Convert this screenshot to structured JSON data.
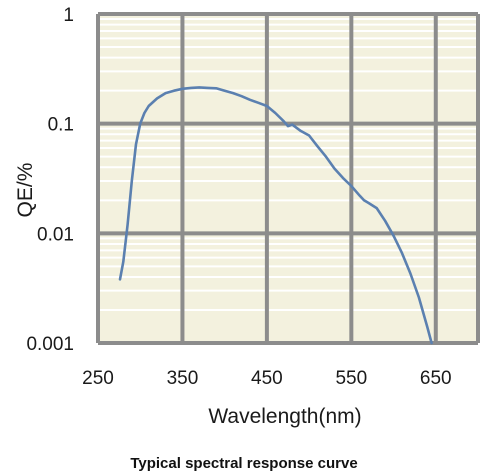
{
  "chart_data": {
    "type": "line",
    "title": "",
    "caption": "Typical spectral response curve",
    "xlabel": "Wavelength(nm)",
    "ylabel": "QE/%",
    "x_scale": "linear",
    "y_scale": "log",
    "xlim": [
      250,
      700
    ],
    "ylim": [
      0.001,
      1
    ],
    "x_ticks": [
      250,
      350,
      450,
      550,
      650
    ],
    "x_tick_labels": [
      "250",
      "350",
      "450",
      "550",
      "650"
    ],
    "y_ticks": [
      0.001,
      0.01,
      0.1,
      1
    ],
    "y_tick_labels": [
      "0.001",
      "0.01",
      "0.1",
      "1"
    ],
    "grid": true,
    "legend": "none",
    "colors": {
      "plot_background": "#f3f1de",
      "minor_grid": "#ffffff",
      "major_grid": "#8c8c8c",
      "line": "#5b80b0"
    },
    "series": [
      {
        "x": [
          276,
          280,
          285,
          290,
          295,
          300,
          305,
          310,
          320,
          330,
          340,
          350,
          360,
          370,
          380,
          390,
          400,
          410,
          420,
          430,
          440,
          450,
          460,
          470,
          475,
          480,
          490,
          500,
          510,
          520,
          530,
          540,
          550,
          560,
          565,
          570,
          580,
          590,
          600,
          610,
          620,
          630,
          640,
          645
        ],
        "y": [
          0.0038,
          0.0055,
          0.012,
          0.03,
          0.065,
          0.1,
          0.125,
          0.145,
          0.17,
          0.19,
          0.2,
          0.208,
          0.212,
          0.214,
          0.212,
          0.21,
          0.2,
          0.19,
          0.178,
          0.165,
          0.155,
          0.145,
          0.125,
          0.105,
          0.095,
          0.098,
          0.086,
          0.078,
          0.062,
          0.05,
          0.039,
          0.032,
          0.027,
          0.022,
          0.02,
          0.019,
          0.017,
          0.013,
          0.0095,
          0.0066,
          0.0043,
          0.0026,
          0.0014,
          0.001
        ]
      }
    ]
  }
}
